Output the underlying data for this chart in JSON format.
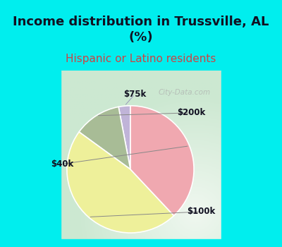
{
  "title": "Income distribution in Trussville, AL\n(%)",
  "subtitle": "Hispanic or Latino residents",
  "labels": [
    "$75k",
    "$200k",
    "$100k",
    "$40k"
  ],
  "values": [
    3,
    12,
    47,
    38
  ],
  "colors": [
    "#c0b4d8",
    "#a8bc96",
    "#eef09a",
    "#f0a8b0"
  ],
  "bg_cyan": "#00EEEE",
  "title_color": "#111122",
  "subtitle_color": "#cc4444",
  "title_fontsize": 13,
  "subtitle_fontsize": 11,
  "startangle": 90,
  "wedge_edge_color": "#ffffff",
  "watermark": "City-Data.com",
  "label_fontsize": 8.5,
  "label_color": "#111122"
}
